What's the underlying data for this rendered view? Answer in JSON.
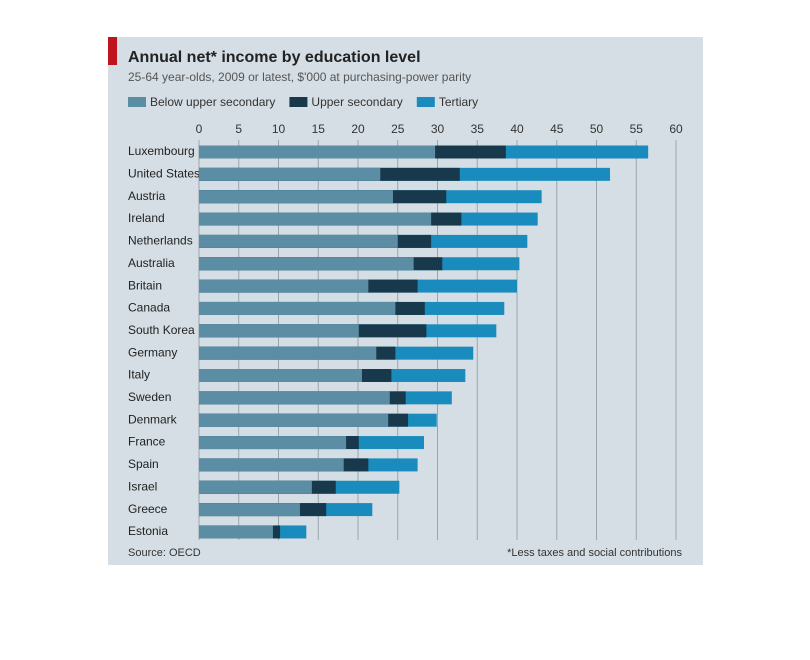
{
  "chart_data": {
    "type": "overlap-bar",
    "title": "Annual net* income by education level",
    "subtitle": "25-64 year-olds, 2009 or latest, $'000 at purchasing-power parity",
    "categories": [
      "Luxembourg",
      "United States",
      "Austria",
      "Ireland",
      "Netherlands",
      "Australia",
      "Britain",
      "Canada",
      "South Korea",
      "Germany",
      "Italy",
      "Sweden",
      "Denmark",
      "France",
      "Spain",
      "Israel",
      "Greece",
      "Estonia"
    ],
    "series": [
      {
        "name": "Below upper secondary",
        "color": "#5b8ea5",
        "values": [
          29.7,
          22.8,
          24.4,
          29.2,
          25.0,
          27.0,
          21.3,
          24.7,
          20.1,
          22.3,
          20.5,
          24.0,
          23.8,
          18.5,
          18.2,
          14.2,
          12.7,
          9.3
        ]
      },
      {
        "name": "Upper secondary",
        "color": "#17394b",
        "values": [
          38.6,
          32.8,
          31.1,
          33.0,
          29.2,
          30.6,
          27.5,
          28.4,
          28.6,
          24.7,
          24.2,
          26.0,
          26.3,
          20.1,
          21.3,
          17.2,
          16.0,
          10.2
        ]
      },
      {
        "name": "Tertiary",
        "color": "#1a8bbd",
        "values": [
          56.5,
          51.7,
          43.1,
          42.6,
          41.3,
          40.3,
          40.0,
          38.4,
          37.4,
          34.5,
          33.5,
          31.8,
          29.9,
          28.3,
          27.5,
          25.2,
          21.8,
          13.5
        ]
      }
    ],
    "xlim": [
      0,
      60
    ],
    "xticks": [
      0,
      5,
      10,
      15,
      20,
      25,
      30,
      35,
      40,
      45,
      50,
      55,
      60
    ],
    "grid": true,
    "source": "Source: OECD",
    "footnote": "*Less taxes and social contributions"
  }
}
